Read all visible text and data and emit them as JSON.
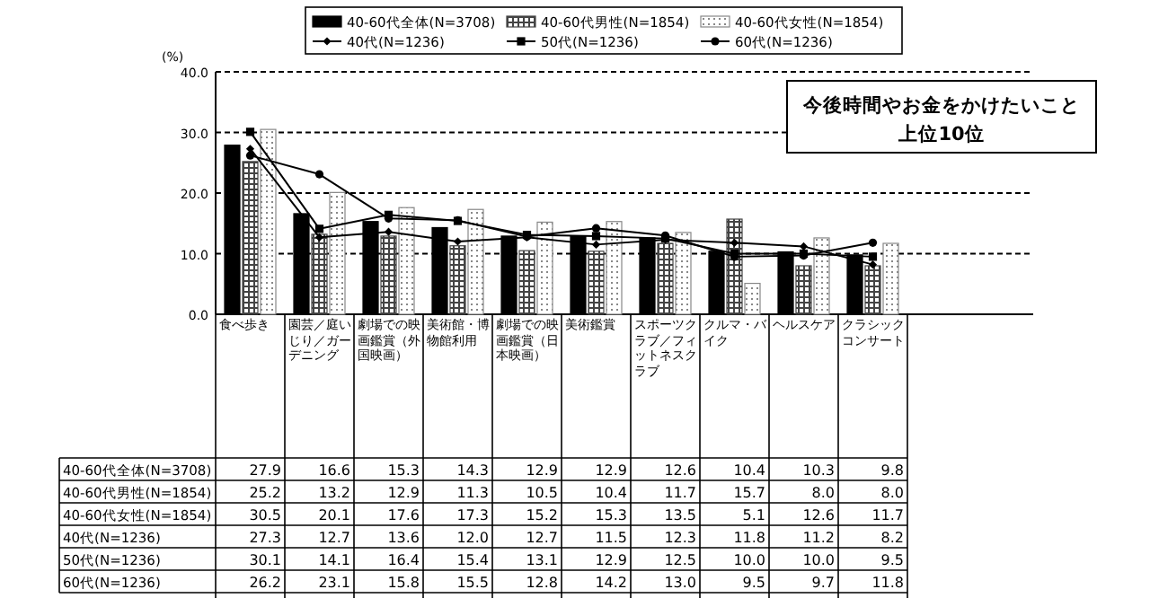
{
  "chart_data": {
    "type": "bar",
    "title": "今後時間やお金をかけたいこと",
    "subtitle": "上位10位",
    "ylabel": "(%)",
    "categories": [
      "食べ歩き",
      "園芸／庭いじり／ガーデニング",
      "劇場での映画鑑賞（外国映画）",
      "美術館・博物館利用",
      "劇場での映画鑑賞（日本映画）",
      "美術鑑賞",
      "スポーツクラブ／フィットネスクラブ",
      "クルマ・バイク",
      "ヘルスケア",
      "クラシックコンサート"
    ],
    "series": [
      {
        "name": "40-60代全体(N=3708)",
        "color": "#000000",
        "values": [
          27.9,
          16.6,
          15.3,
          14.3,
          12.9,
          12.9,
          12.6,
          10.4,
          10.3,
          9.8
        ],
        "value_labels": [
          "27.9",
          "16.6",
          "15.3",
          "14.3",
          "12.9",
          "12.9",
          "12.6",
          "10.4",
          "10.3",
          "9.8"
        ]
      },
      {
        "name": "40-60代男性(N=1854)",
        "color": "#444444",
        "values": [
          25.2,
          13.2,
          12.9,
          11.3,
          10.5,
          10.4,
          11.7,
          15.7,
          8.0,
          8.0
        ],
        "value_labels": [
          "25.2",
          "13.2",
          "12.9",
          "11.3",
          "10.5",
          "10.4",
          "11.7",
          "15.7",
          "8.0",
          "8.0"
        ]
      },
      {
        "name": "40-60代女性(N=1854)",
        "color": "#888888",
        "values": [
          30.5,
          20.1,
          17.6,
          17.3,
          15.2,
          15.3,
          13.5,
          5.1,
          12.6,
          11.7
        ],
        "value_labels": [
          "30.5",
          "20.1",
          "17.6",
          "17.3",
          "15.2",
          "15.3",
          "13.5",
          "5.1",
          "12.6",
          "11.7"
        ]
      },
      {
        "name": "40代(N=1236)",
        "type": "line",
        "marker": "diamond",
        "color": "#000000",
        "values": [
          27.3,
          12.7,
          13.6,
          12.0,
          12.7,
          11.5,
          12.3,
          11.8,
          11.2,
          8.2
        ],
        "value_labels": [
          "27.3",
          "12.7",
          "13.6",
          "12.0",
          "12.7",
          "11.5",
          "12.3",
          "11.8",
          "11.2",
          "8.2"
        ]
      },
      {
        "name": "50代(N=1236)",
        "type": "line",
        "marker": "square",
        "color": "#000000",
        "values": [
          30.1,
          14.1,
          16.4,
          15.4,
          13.1,
          12.9,
          12.5,
          10.0,
          10.0,
          9.5
        ],
        "value_labels": [
          "30.1",
          "14.1",
          "16.4",
          "15.4",
          "13.1",
          "12.9",
          "12.5",
          "10.0",
          "10.0",
          "9.5"
        ]
      },
      {
        "name": "60代(N=1236)",
        "type": "line",
        "marker": "circle",
        "color": "#000000",
        "values": [
          26.2,
          23.1,
          15.8,
          15.5,
          12.8,
          14.2,
          13.0,
          9.5,
          9.7,
          11.8
        ],
        "value_labels": [
          "26.2",
          "23.1",
          "15.8",
          "15.5",
          "12.8",
          "14.2",
          "13.0",
          "9.5",
          "9.7",
          "11.8"
        ]
      }
    ],
    "ylim": [
      0,
      40
    ],
    "yticks": [
      {
        "value": 0,
        "label": "0.0"
      },
      {
        "value": 10,
        "label": "10.0"
      },
      {
        "value": 20,
        "label": "20.0"
      },
      {
        "value": 30,
        "label": "30.0"
      },
      {
        "value": 40,
        "label": "40.0"
      }
    ],
    "grid": "y",
    "legend": "top"
  }
}
